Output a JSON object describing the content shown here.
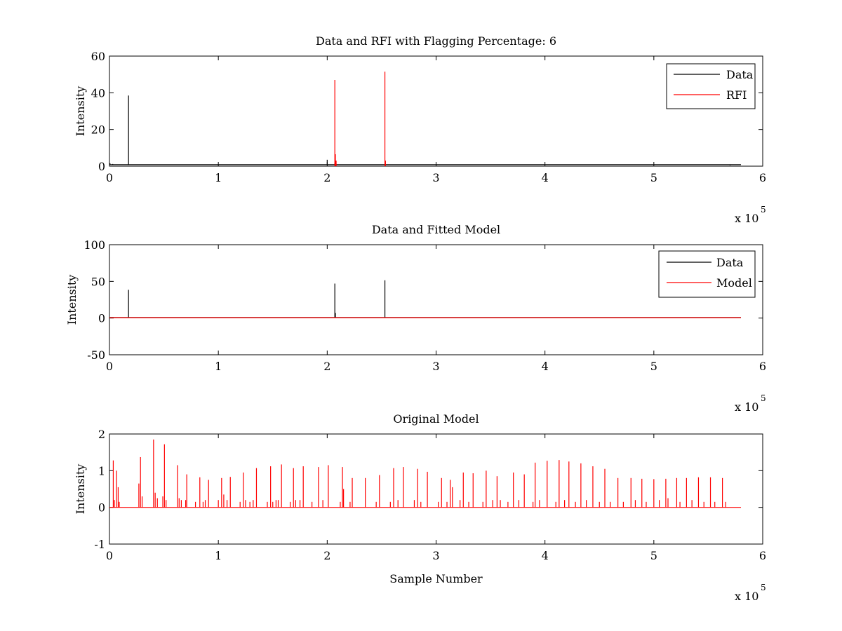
{
  "figure": {
    "background": "#ffffff",
    "colors": {
      "data": "#000000",
      "rfi": "#ff0000",
      "model": "#ff0000",
      "axes": "#000000"
    }
  },
  "chart_data": [
    {
      "type": "line",
      "title": "Data and RFI with Flagging Percentage: 6",
      "xlabel": "",
      "ylabel": "Intensity",
      "xlim": [
        0,
        600000
      ],
      "ylim": [
        0,
        60
      ],
      "xticks": [
        0,
        100000,
        200000,
        300000,
        400000,
        500000,
        600000
      ],
      "xtick_labels": [
        "0",
        "1",
        "2",
        "3",
        "4",
        "5",
        "6"
      ],
      "x_exponent_label": "x 10",
      "x_exponent_power": "5",
      "yticks": [
        0,
        20,
        40,
        60
      ],
      "ytick_labels": [
        "0",
        "20",
        "40",
        "60"
      ],
      "grid": false,
      "legend": {
        "placement": "top-right",
        "entries": [
          "Data",
          "RFI"
        ]
      },
      "series": [
        {
          "name": "Data",
          "color": "#000000",
          "baseline": 0.8,
          "x_end": 580000,
          "spikes": [
            [
              500,
              1.6
            ],
            [
              3000,
              1.2
            ],
            [
              17500,
              38.5
            ],
            [
              200000,
              3.5
            ],
            [
              207000,
              1.5
            ],
            [
              253000,
              1.2
            ],
            [
              570000,
              0.4
            ]
          ]
        },
        {
          "name": "RFI",
          "color": "#ff0000",
          "baseline": null,
          "x_end": 580000,
          "spikes": [
            [
              207000,
              47
            ],
            [
              207500,
              6.5
            ],
            [
              208200,
              3.0
            ],
            [
              253000,
              51.5
            ],
            [
              253500,
              3.0
            ]
          ]
        }
      ]
    },
    {
      "type": "line",
      "title": "Data and Fitted Model",
      "xlabel": "",
      "ylabel": "Intensity",
      "xlim": [
        0,
        600000
      ],
      "ylim": [
        -50,
        100
      ],
      "xticks": [
        0,
        100000,
        200000,
        300000,
        400000,
        500000,
        600000
      ],
      "xtick_labels": [
        "0",
        "1",
        "2",
        "3",
        "4",
        "5",
        "6"
      ],
      "x_exponent_label": "x 10",
      "x_exponent_power": "5",
      "yticks": [
        -50,
        0,
        50,
        100
      ],
      "ytick_labels": [
        "-50",
        "0",
        "50",
        "100"
      ],
      "grid": false,
      "legend": {
        "placement": "top-right",
        "entries": [
          "Data",
          "Model"
        ]
      },
      "series": [
        {
          "name": "Data",
          "color": "#000000",
          "baseline": 0.8,
          "x_end": 580000,
          "spikes": [
            [
              17500,
              38.5
            ],
            [
              207000,
              47
            ],
            [
              207500,
              7
            ],
            [
              253000,
              51.5
            ]
          ]
        },
        {
          "name": "Model",
          "color": "#ff0000",
          "baseline": 0.5,
          "x_end": 580000,
          "spikes": []
        }
      ]
    },
    {
      "type": "line",
      "title": "Original Model",
      "xlabel": "Sample Number",
      "ylabel": "Intensity",
      "xlim": [
        0,
        600000
      ],
      "ylim": [
        -1,
        2
      ],
      "xticks": [
        0,
        100000,
        200000,
        300000,
        400000,
        500000,
        600000
      ],
      "xtick_labels": [
        "0",
        "1",
        "2",
        "3",
        "4",
        "5",
        "6"
      ],
      "x_exponent_label": "x 10",
      "x_exponent_power": "5",
      "yticks": [
        -1,
        0,
        1,
        2
      ],
      "ytick_labels": [
        "-1",
        "0",
        "1",
        "2"
      ],
      "grid": false,
      "legend": null,
      "series": [
        {
          "name": "",
          "color": "#ff0000",
          "baseline": 0,
          "x_end": 580000,
          "spikes": [
            [
              3500,
              1.28
            ],
            [
              4500,
              0.2
            ],
            [
              6500,
              1.0
            ],
            [
              8000,
              0.55
            ],
            [
              9000,
              0.15
            ],
            [
              27000,
              0.65
            ],
            [
              28500,
              1.37
            ],
            [
              30000,
              0.3
            ],
            [
              40500,
              1.85
            ],
            [
              42000,
              0.4
            ],
            [
              44000,
              0.25
            ],
            [
              49000,
              0.3
            ],
            [
              50500,
              1.72
            ],
            [
              52000,
              0.2
            ],
            [
              62500,
              1.15
            ],
            [
              64000,
              0.25
            ],
            [
              66000,
              0.2
            ],
            [
              70000,
              0.2
            ],
            [
              71000,
              0.9
            ],
            [
              79000,
              0.15
            ],
            [
              83000,
              0.82
            ],
            [
              86000,
              0.15
            ],
            [
              88000,
              0.2
            ],
            [
              91000,
              0.75
            ],
            [
              100000,
              0.2
            ],
            [
              103000,
              0.8
            ],
            [
              105000,
              0.35
            ],
            [
              108000,
              0.2
            ],
            [
              111000,
              0.83
            ],
            [
              120000,
              0.15
            ],
            [
              123000,
              0.95
            ],
            [
              125000,
              0.2
            ],
            [
              129000,
              0.15
            ],
            [
              132000,
              0.2
            ],
            [
              135000,
              1.07
            ],
            [
              145000,
              0.15
            ],
            [
              148000,
              1.12
            ],
            [
              150000,
              0.15
            ],
            [
              153000,
              0.2
            ],
            [
              155000,
              0.2
            ],
            [
              158000,
              1.17
            ],
            [
              166000,
              0.15
            ],
            [
              169000,
              1.07
            ],
            [
              171000,
              0.2
            ],
            [
              175000,
              0.2
            ],
            [
              178000,
              1.12
            ],
            [
              186000,
              0.15
            ],
            [
              192000,
              1.1
            ],
            [
              196000,
              0.2
            ],
            [
              201000,
              1.15
            ],
            [
              212000,
              0.15
            ],
            [
              214000,
              1.1
            ],
            [
              215000,
              0.5
            ],
            [
              221000,
              0.15
            ],
            [
              223000,
              0.8
            ],
            [
              235000,
              0.8
            ],
            [
              245000,
              0.15
            ],
            [
              248000,
              0.88
            ],
            [
              258000,
              0.15
            ],
            [
              261000,
              1.07
            ],
            [
              265000,
              0.2
            ],
            [
              270000,
              1.1
            ],
            [
              280000,
              0.2
            ],
            [
              283000,
              1.05
            ],
            [
              286000,
              0.15
            ],
            [
              292000,
              0.97
            ],
            [
              302000,
              0.15
            ],
            [
              305000,
              0.8
            ],
            [
              310000,
              0.15
            ],
            [
              313000,
              0.75
            ],
            [
              315000,
              0.55
            ],
            [
              322000,
              0.2
            ],
            [
              325000,
              0.95
            ],
            [
              330000,
              0.15
            ],
            [
              334000,
              0.93
            ],
            [
              343000,
              0.15
            ],
            [
              346000,
              1.0
            ],
            [
              352000,
              0.2
            ],
            [
              356000,
              0.85
            ],
            [
              359000,
              0.2
            ],
            [
              366000,
              0.15
            ],
            [
              371000,
              0.95
            ],
            [
              376000,
              0.2
            ],
            [
              381000,
              0.9
            ],
            [
              389000,
              0.15
            ],
            [
              391000,
              1.22
            ],
            [
              395000,
              0.2
            ],
            [
              402000,
              1.27
            ],
            [
              410000,
              0.15
            ],
            [
              413000,
              1.29
            ],
            [
              418000,
              0.2
            ],
            [
              422000,
              1.25
            ],
            [
              428000,
              0.15
            ],
            [
              433000,
              1.2
            ],
            [
              438000,
              0.2
            ],
            [
              444000,
              1.12
            ],
            [
              450000,
              0.15
            ],
            [
              455000,
              1.05
            ],
            [
              460000,
              0.15
            ],
            [
              467000,
              0.8
            ],
            [
              472000,
              0.15
            ],
            [
              479000,
              0.8
            ],
            [
              483000,
              0.2
            ],
            [
              489000,
              0.78
            ],
            [
              493000,
              0.15
            ],
            [
              500000,
              0.77
            ],
            [
              505000,
              0.2
            ],
            [
              511000,
              0.78
            ],
            [
              513000,
              0.25
            ],
            [
              521000,
              0.8
            ],
            [
              524000,
              0.15
            ],
            [
              530000,
              0.8
            ],
            [
              535000,
              0.2
            ],
            [
              541000,
              0.82
            ],
            [
              546000,
              0.15
            ],
            [
              552000,
              0.82
            ],
            [
              556000,
              0.15
            ],
            [
              563000,
              0.8
            ],
            [
              566000,
              0.15
            ]
          ]
        }
      ]
    }
  ]
}
